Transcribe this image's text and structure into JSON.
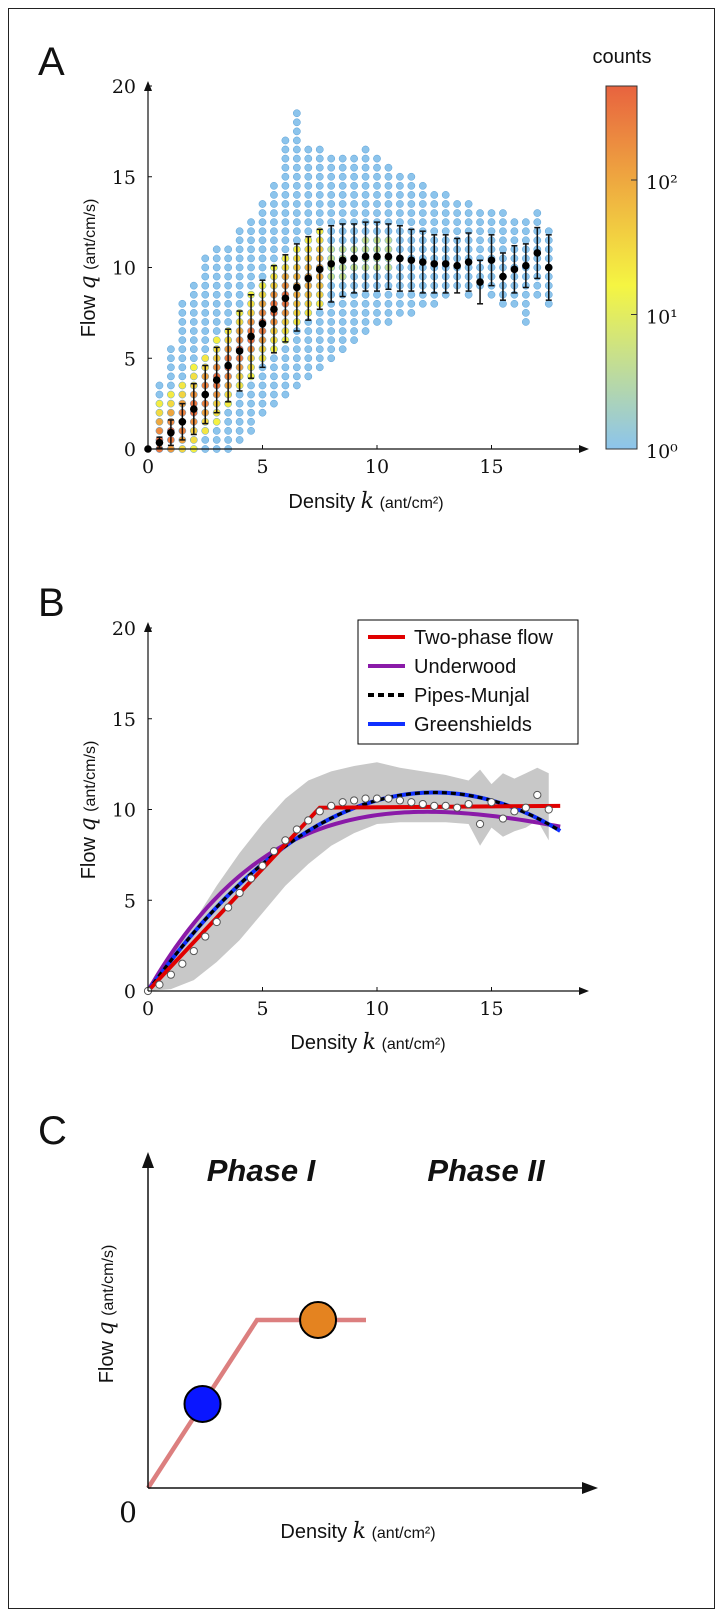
{
  "chart_data": [
    {
      "panel": "A",
      "type": "scatter",
      "xlabel": "Density",
      "xlabel_symbol": "k",
      "xlabel_unit": "(ant/cm²)",
      "ylabel": "Flow",
      "ylabel_symbol": "q",
      "ylabel_unit": "(ant/cm/s)",
      "xlim": [
        0,
        19
      ],
      "ylim": [
        0,
        20
      ],
      "xticks": [
        "0",
        "5",
        "10",
        "15"
      ],
      "yticks": [
        "0",
        "5",
        "10",
        "15",
        "20"
      ],
      "colorbar": {
        "title": "counts",
        "scale": "log",
        "range": [
          1,
          500
        ],
        "ticks": [
          "10⁰",
          "10¹",
          "10²"
        ],
        "colors": [
          "#8cc4ec",
          "#f5f542",
          "#e8633f"
        ]
      },
      "cloud_columns": [
        {
          "x": 0.5,
          "ymin": 0,
          "ymax": 3.5
        },
        {
          "x": 1.0,
          "ymin": 0,
          "ymax": 5.8
        },
        {
          "x": 1.5,
          "ymin": 0,
          "ymax": 8.0
        },
        {
          "x": 2.0,
          "ymin": 0,
          "ymax": 9.2
        },
        {
          "x": 2.5,
          "ymin": 0,
          "ymax": 10.5
        },
        {
          "x": 3.0,
          "ymin": 0,
          "ymax": 11.0
        },
        {
          "x": 3.5,
          "ymin": 0,
          "ymax": 11.0
        },
        {
          "x": 4.0,
          "ymin": 0.5,
          "ymax": 12.0
        },
        {
          "x": 4.5,
          "ymin": 1.0,
          "ymax": 12.5
        },
        {
          "x": 5.0,
          "ymin": 2.0,
          "ymax": 13.5
        },
        {
          "x": 5.5,
          "ymin": 2.5,
          "ymax": 14.5
        },
        {
          "x": 6.0,
          "ymin": 3.0,
          "ymax": 17.0
        },
        {
          "x": 6.5,
          "ymin": 3.5,
          "ymax": 18.5
        },
        {
          "x": 7.0,
          "ymin": 4.0,
          "ymax": 16.5
        },
        {
          "x": 7.5,
          "ymin": 4.5,
          "ymax": 16.5
        },
        {
          "x": 8.0,
          "ymin": 5.0,
          "ymax": 16.0
        },
        {
          "x": 8.5,
          "ymin": 5.5,
          "ymax": 16.0
        },
        {
          "x": 9.0,
          "ymin": 6.0,
          "ymax": 16.0
        },
        {
          "x": 9.5,
          "ymin": 6.5,
          "ymax": 16.5
        },
        {
          "x": 10.0,
          "ymin": 7.0,
          "ymax": 16.0
        },
        {
          "x": 10.5,
          "ymin": 7.0,
          "ymax": 15.5
        },
        {
          "x": 11.0,
          "ymin": 7.5,
          "ymax": 15.0
        },
        {
          "x": 11.5,
          "ymin": 7.5,
          "ymax": 15.0
        },
        {
          "x": 12.0,
          "ymin": 8.0,
          "ymax": 14.5
        },
        {
          "x": 12.5,
          "ymin": 8.0,
          "ymax": 14.0
        },
        {
          "x": 13.0,
          "ymin": 8.5,
          "ymax": 14.0
        },
        {
          "x": 13.5,
          "ymin": 9.0,
          "ymax": 13.5
        },
        {
          "x": 14.0,
          "ymin": 8.5,
          "ymax": 13.5
        },
        {
          "x": 14.5,
          "ymin": 9.0,
          "ymax": 13.0
        },
        {
          "x": 15.0,
          "ymin": 8.5,
          "ymax": 13.0
        },
        {
          "x": 15.5,
          "ymin": 8.0,
          "ymax": 13.0
        },
        {
          "x": 16.0,
          "ymin": 8.0,
          "ymax": 12.5
        },
        {
          "x": 16.5,
          "ymin": 7.0,
          "ymax": 12.5
        },
        {
          "x": 17.0,
          "ymin": 8.5,
          "ymax": 13.0
        },
        {
          "x": 17.5,
          "ymin": 8.0,
          "ymax": 12.0
        }
      ],
      "means": {
        "x": [
          0,
          0.5,
          1.0,
          1.5,
          2.0,
          2.5,
          3.0,
          3.5,
          4.0,
          4.5,
          5.0,
          5.5,
          6.0,
          6.5,
          7.0,
          7.5,
          8.0,
          8.5,
          9.0,
          9.5,
          10.0,
          10.5,
          11.0,
          11.5,
          12.0,
          12.5,
          13.0,
          13.5,
          14.0,
          14.5,
          15.0,
          15.5,
          16.0,
          16.5,
          17.0,
          17.5
        ],
        "y": [
          0,
          0.35,
          0.9,
          1.5,
          2.2,
          3.0,
          3.8,
          4.6,
          5.4,
          6.2,
          6.9,
          7.7,
          8.3,
          8.9,
          9.4,
          9.9,
          10.2,
          10.4,
          10.5,
          10.6,
          10.6,
          10.6,
          10.5,
          10.4,
          10.3,
          10.2,
          10.2,
          10.1,
          10.3,
          9.2,
          10.4,
          9.5,
          9.9,
          10.1,
          10.8,
          10.0
        ],
        "err": [
          0,
          0.3,
          0.7,
          1.0,
          1.4,
          1.6,
          1.8,
          2.0,
          2.2,
          2.3,
          2.4,
          2.4,
          2.4,
          2.4,
          2.3,
          2.2,
          2.1,
          2.0,
          1.9,
          1.9,
          1.9,
          1.8,
          1.8,
          1.7,
          1.7,
          1.6,
          1.6,
          1.5,
          1.6,
          1.2,
          1.4,
          1.3,
          1.3,
          1.2,
          1.4,
          1.8
        ]
      }
    },
    {
      "panel": "B",
      "type": "line",
      "xlabel": "Density",
      "xlabel_symbol": "k",
      "xlabel_unit": "(ant/cm²)",
      "ylabel": "Flow",
      "ylabel_symbol": "q",
      "ylabel_unit": "(ant/cm/s)",
      "xlim": [
        0,
        19
      ],
      "ylim": [
        0,
        20
      ],
      "xticks": [
        "0",
        "5",
        "10",
        "15"
      ],
      "yticks": [
        "0",
        "5",
        "10",
        "15",
        "20"
      ],
      "legend_position": "top-right",
      "band": {
        "x": [
          0,
          1,
          2,
          3,
          4,
          5,
          6,
          7,
          8,
          9,
          10,
          11,
          12,
          13,
          14,
          14.5,
          15,
          15.5,
          16,
          16.5,
          17,
          17.5
        ],
        "upper": [
          0.3,
          1.8,
          3.8,
          5.8,
          7.6,
          9.2,
          10.6,
          11.6,
          12.1,
          12.4,
          12.6,
          12.3,
          12.1,
          11.9,
          11.6,
          12.2,
          11.4,
          12.0,
          11.7,
          12.0,
          12.3,
          12.0
        ],
        "lower": [
          0,
          0.1,
          0.6,
          1.6,
          2.8,
          4.3,
          5.8,
          7.0,
          8.0,
          8.7,
          9.2,
          9.3,
          9.3,
          9.3,
          9.2,
          8.0,
          9.0,
          8.5,
          8.8,
          9.0,
          9.4,
          8.3
        ]
      },
      "series": [
        {
          "name": "Two-phase flow",
          "color": "#e00000",
          "style": "solid",
          "x": [
            0,
            7.5,
            18
          ],
          "y": [
            0,
            10.1,
            10.2
          ]
        },
        {
          "name": "Underwood",
          "color": "#8a1aa8",
          "style": "solid",
          "model": "underwood",
          "vmax": 2.2,
          "kc": 12.2
        },
        {
          "name": "Pipes-Munjal",
          "color": "#000000",
          "style": "dashed",
          "model": "greenshields",
          "vmax": 1.75,
          "kj": 25
        },
        {
          "name": "Greenshields",
          "color": "#1030ff",
          "style": "solid",
          "model": "greenshields",
          "vmax": 1.75,
          "kj": 25
        }
      ],
      "points": {
        "x": [
          0,
          0.5,
          1.0,
          1.5,
          2.0,
          2.5,
          3.0,
          3.5,
          4.0,
          4.5,
          5.0,
          5.5,
          6.0,
          6.5,
          7.0,
          7.5,
          8.0,
          8.5,
          9.0,
          9.5,
          10.0,
          10.5,
          11.0,
          11.5,
          12.0,
          12.5,
          13.0,
          13.5,
          14.0,
          14.5,
          15.0,
          15.5,
          16.0,
          16.5,
          17.0,
          17.5
        ],
        "y": [
          0,
          0.35,
          0.9,
          1.5,
          2.2,
          3.0,
          3.8,
          4.6,
          5.4,
          6.2,
          6.9,
          7.7,
          8.3,
          8.9,
          9.4,
          9.9,
          10.2,
          10.4,
          10.5,
          10.6,
          10.6,
          10.6,
          10.5,
          10.4,
          10.3,
          10.2,
          10.2,
          10.1,
          10.3,
          9.2,
          10.4,
          9.5,
          9.9,
          10.1,
          10.8,
          10.0
        ]
      }
    },
    {
      "panel": "C",
      "type": "line",
      "xlabel": "Density",
      "xlabel_symbol": "k",
      "xlabel_unit": "(ant/cm²)",
      "ylabel": "Flow",
      "ylabel_symbol": "q",
      "ylabel_unit": "(ant/cm/s)",
      "origin_label": "0",
      "phases": [
        "Phase I",
        "Phase II"
      ],
      "curve": {
        "color": "#dc7f7f",
        "x": [
          0,
          5,
          10
        ],
        "y": [
          0,
          5,
          5
        ]
      },
      "markers": [
        {
          "name": "phase-1",
          "color": "#0a16ff",
          "x": 2.5,
          "y": 2.5
        },
        {
          "name": "phase-2",
          "color": "#e48320",
          "x": 7.8,
          "y": 5
        }
      ]
    }
  ],
  "panels": {
    "a": {
      "letter": "A"
    },
    "b": {
      "letter": "B"
    },
    "c": {
      "letter": "C"
    }
  }
}
